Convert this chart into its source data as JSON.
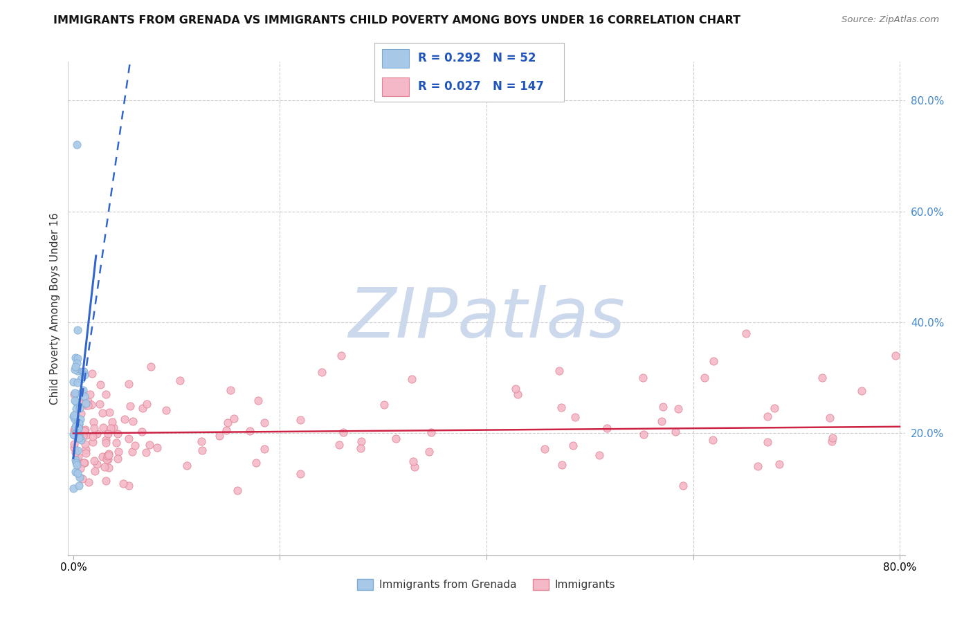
{
  "title": "IMMIGRANTS FROM GRENADA VS IMMIGRANTS CHILD POVERTY AMONG BOYS UNDER 16 CORRELATION CHART",
  "source": "Source: ZipAtlas.com",
  "ylabel": "Child Poverty Among Boys Under 16",
  "r1": 0.292,
  "n1": 52,
  "r2": 0.027,
  "n2": 147,
  "series1_color": "#a8c8e8",
  "series1_edge": "#7aaad0",
  "series2_color": "#f4b8c8",
  "series2_edge": "#e08090",
  "trend1_color": "#3366cc",
  "trend2_color": "#cc2244",
  "watermark": "ZIPatlas",
  "watermark_color": "#ccd8ec",
  "legend1_label": "Immigrants from Grenada",
  "legend2_label": "Immigrants"
}
